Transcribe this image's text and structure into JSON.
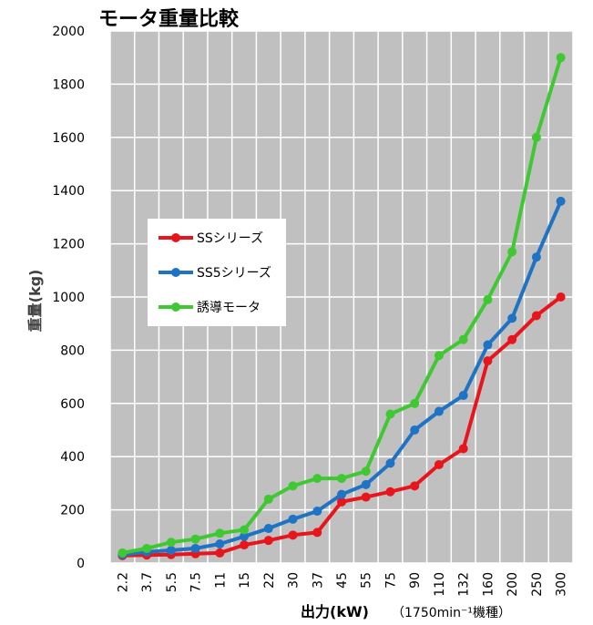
{
  "chart_data": {
    "type": "line",
    "title": "モータ重量比較",
    "ylabel": "重量(kg)",
    "xlabel": "出力(kW)",
    "xnote": "（1750min⁻¹機種）",
    "categories": [
      "2.2",
      "3.7",
      "5.5",
      "7.5",
      "11",
      "15",
      "22",
      "30",
      "37",
      "45",
      "55",
      "75",
      "90",
      "110",
      "132",
      "160",
      "200",
      "250",
      "300"
    ],
    "ylim": [
      0,
      2000
    ],
    "yticks": [
      0,
      200,
      400,
      600,
      800,
      1000,
      1200,
      1400,
      1600,
      1800,
      2000
    ],
    "grid": true,
    "plot_background": "#C0C0C0",
    "legend_position": "left-middle",
    "series": [
      {
        "name": "SSシリーズ",
        "color": "#E8161C",
        "values": [
          28,
          30,
          32,
          35,
          38,
          68,
          85,
          105,
          115,
          230,
          248,
          268,
          290,
          370,
          430,
          760,
          840,
          930,
          1000
        ]
      },
      {
        "name": "SS5シリーズ",
        "color": "#1F73C4",
        "values": [
          32,
          42,
          48,
          55,
          72,
          100,
          130,
          165,
          195,
          258,
          295,
          375,
          500,
          570,
          630,
          820,
          920,
          1150,
          1360
        ]
      },
      {
        "name": "誘導モータ",
        "color": "#40C832",
        "values": [
          38,
          55,
          78,
          90,
          112,
          125,
          240,
          290,
          318,
          318,
          345,
          560,
          600,
          780,
          840,
          990,
          1170,
          1600,
          1900
        ]
      }
    ]
  }
}
